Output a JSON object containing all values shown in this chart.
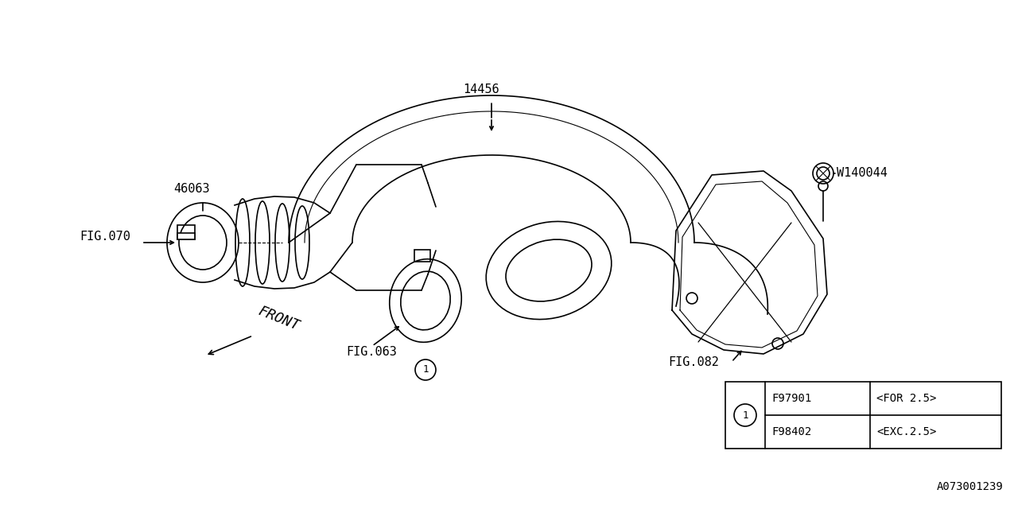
{
  "bg_color": "#ffffff",
  "lc": "#000000",
  "part_14456": "14456",
  "part_46063": "46063",
  "part_W140044": "W140044",
  "fig070": "FIG.070",
  "fig063": "FIG.063",
  "fig082": "FIG.082",
  "label_front": "FRONT",
  "diagram_id": "A073001239",
  "tbl_r1_part": "F98402",
  "tbl_r1_desc": "<EXC.2.5>",
  "tbl_r2_part": "F97901",
  "tbl_r2_desc": "<FOR 2.5>"
}
